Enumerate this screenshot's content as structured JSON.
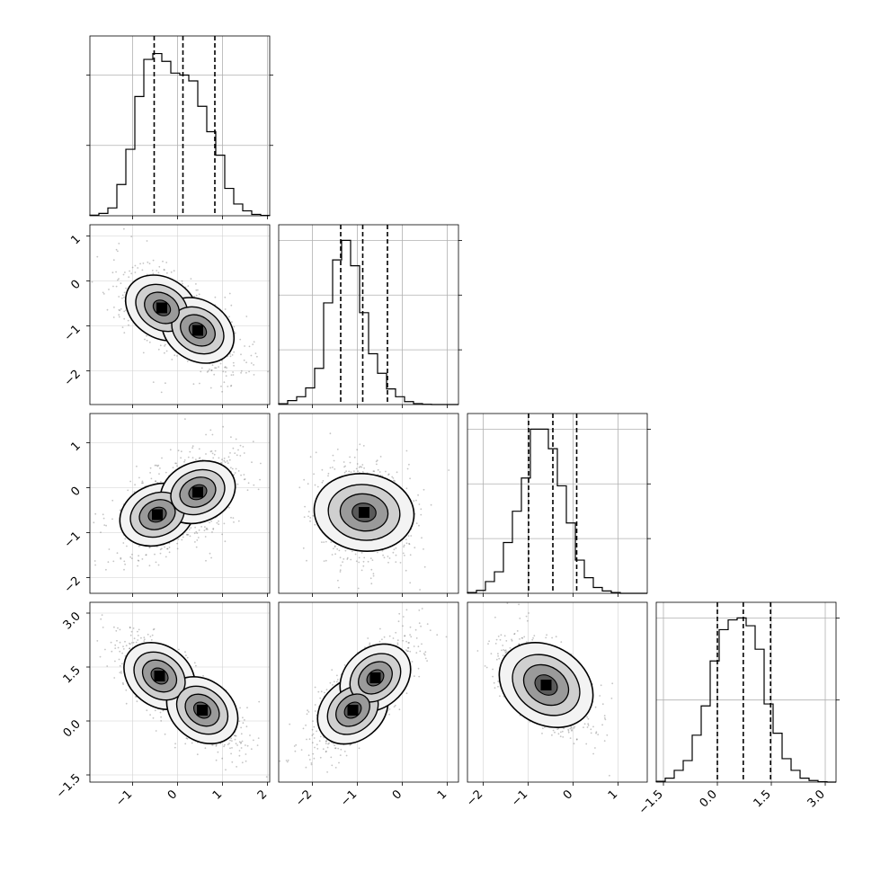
{
  "chart_data": [
    {
      "type": "histogram",
      "panel": "p0",
      "ylim": [
        0,
        0.92
      ],
      "bins": {
        "start": -1.95,
        "end": 2.05,
        "count": 20
      },
      "values": [
        0.003,
        0.012,
        0.04,
        0.16,
        0.34,
        0.61,
        0.8,
        0.83,
        0.79,
        0.73,
        0.72,
        0.69,
        0.56,
        0.43,
        0.31,
        0.14,
        0.06,
        0.025,
        0.007,
        0.002
      ],
      "quantiles": [
        -0.52,
        0.12,
        0.83
      ],
      "x_ticks": [
        -1,
        0,
        1,
        2
      ],
      "x_tick_labels": [],
      "y_grid": [
        0.36,
        0.72
      ],
      "y_tick_labels": []
    },
    {
      "type": "histogram",
      "panel": "p1",
      "ylim": [
        0,
        0.92
      ],
      "bins": {
        "start": -2.75,
        "end": 1.25,
        "count": 20
      },
      "values": [
        0.004,
        0.02,
        0.04,
        0.085,
        0.185,
        0.52,
        0.74,
        0.84,
        0.71,
        0.47,
        0.26,
        0.16,
        0.08,
        0.04,
        0.015,
        0.005,
        0.001,
        0,
        0,
        0
      ],
      "quantiles": [
        -1.37,
        -0.88,
        -0.33
      ],
      "x_ticks": [
        -2,
        -1,
        0,
        1
      ],
      "x_tick_labels": [],
      "y_grid": [
        0.28,
        0.56,
        0.84
      ],
      "y_tick_labels": []
    },
    {
      "type": "histogram",
      "panel": "p2",
      "ylim": [
        0,
        0.92
      ],
      "bins": {
        "start": -2.35,
        "end": 1.65,
        "count": 20
      },
      "values": [
        0.004,
        0.015,
        0.06,
        0.11,
        0.26,
        0.42,
        0.59,
        0.84,
        0.84,
        0.74,
        0.55,
        0.36,
        0.17,
        0.08,
        0.03,
        0.012,
        0.004,
        0,
        0,
        0
      ],
      "quantiles": [
        -0.99,
        -0.45,
        0.08
      ],
      "x_ticks": [
        -2,
        -1,
        0,
        1
      ],
      "x_tick_labels": [],
      "y_grid": [
        0.28,
        0.56,
        0.84
      ],
      "y_tick_labels": []
    },
    {
      "type": "histogram",
      "panel": "p3",
      "ylim": [
        0,
        0.92
      ],
      "bins": {
        "start": -1.7,
        "end": 3.3,
        "count": 20
      },
      "values": [
        0.004,
        0.02,
        0.06,
        0.11,
        0.24,
        0.39,
        0.62,
        0.78,
        0.83,
        0.84,
        0.8,
        0.68,
        0.4,
        0.25,
        0.12,
        0.06,
        0.02,
        0.008,
        0.002,
        0
      ],
      "quantiles": [
        0.0,
        0.72,
        1.48
      ],
      "x_ticks": [
        -1.5,
        0.0,
        1.5,
        3.0
      ],
      "x_tick_labels": [
        "−1.5",
        "0.0",
        "1.5",
        "3.0"
      ],
      "y_grid": [
        0.42,
        0.84
      ],
      "y_tick_labels": []
    },
    {
      "type": "2d-density",
      "panel": "p10",
      "xlim": [
        -1.95,
        2.05
      ],
      "ylim": [
        -2.75,
        1.25
      ],
      "x_ticks": [
        -1,
        0,
        1,
        2
      ],
      "y_ticks": [
        1,
        0,
        -1,
        -2
      ],
      "x_tick_labels": [],
      "y_tick_labels": [
        "1",
        "0",
        "−1",
        "−2"
      ],
      "modes": [
        [
          -0.35,
          -0.6
        ],
        [
          0.45,
          -1.1
        ]
      ],
      "correlation": -0.55
    },
    {
      "type": "2d-density",
      "panel": "p20",
      "xlim": [
        -1.95,
        2.05
      ],
      "ylim": [
        -2.35,
        1.65
      ],
      "x_ticks": [
        -1,
        0,
        1,
        2
      ],
      "y_ticks": [
        1,
        0,
        -1,
        -2
      ],
      "x_tick_labels": [],
      "y_tick_labels": [
        "1",
        "0",
        "−1",
        "−2"
      ],
      "modes": [
        [
          -0.45,
          -0.6
        ],
        [
          0.45,
          -0.1
        ]
      ],
      "correlation": 0.35
    },
    {
      "type": "2d-density",
      "panel": "p21",
      "xlim": [
        -2.75,
        1.25
      ],
      "ylim": [
        -2.35,
        1.65
      ],
      "x_ticks": [
        -2,
        -1,
        0,
        1
      ],
      "y_ticks": [],
      "x_tick_labels": [],
      "y_tick_labels": [],
      "modes": [
        [
          -0.85,
          -0.55
        ]
      ],
      "correlation": -0.1
    },
    {
      "type": "2d-density",
      "panel": "p30",
      "xlim": [
        -1.95,
        2.05
      ],
      "ylim": [
        -1.7,
        3.3
      ],
      "x_ticks": [
        -1,
        0,
        1,
        2
      ],
      "y_ticks": [
        3.0,
        1.5,
        0.0,
        -1.5
      ],
      "x_tick_labels": [
        "−1",
        "0",
        "1",
        "2"
      ],
      "y_tick_labels": [
        "3.0",
        "1.5",
        "0.0",
        "−1.5"
      ],
      "modes": [
        [
          -0.4,
          1.25
        ],
        [
          0.55,
          0.3
        ]
      ],
      "correlation": -0.65
    },
    {
      "type": "2d-density",
      "panel": "p31",
      "xlim": [
        -2.75,
        1.25
      ],
      "ylim": [
        -1.7,
        3.3
      ],
      "x_ticks": [
        -2,
        -1,
        0,
        1
      ],
      "y_ticks": [],
      "x_tick_labels": [
        "−2",
        "−1",
        "0",
        "1"
      ],
      "y_tick_labels": [],
      "modes": [
        [
          -1.1,
          0.3
        ],
        [
          -0.6,
          1.2
        ]
      ],
      "correlation": 0.7
    },
    {
      "type": "2d-density",
      "panel": "p32",
      "xlim": [
        -2.35,
        1.65
      ],
      "ylim": [
        -1.7,
        3.3
      ],
      "x_ticks": [
        -2,
        -1,
        0,
        1
      ],
      "y_ticks": [],
      "x_tick_labels": [
        "−2",
        "−1",
        "0",
        "1"
      ],
      "y_tick_labels": [],
      "modes": [
        [
          -0.6,
          1.0
        ]
      ],
      "correlation": -0.55
    }
  ]
}
